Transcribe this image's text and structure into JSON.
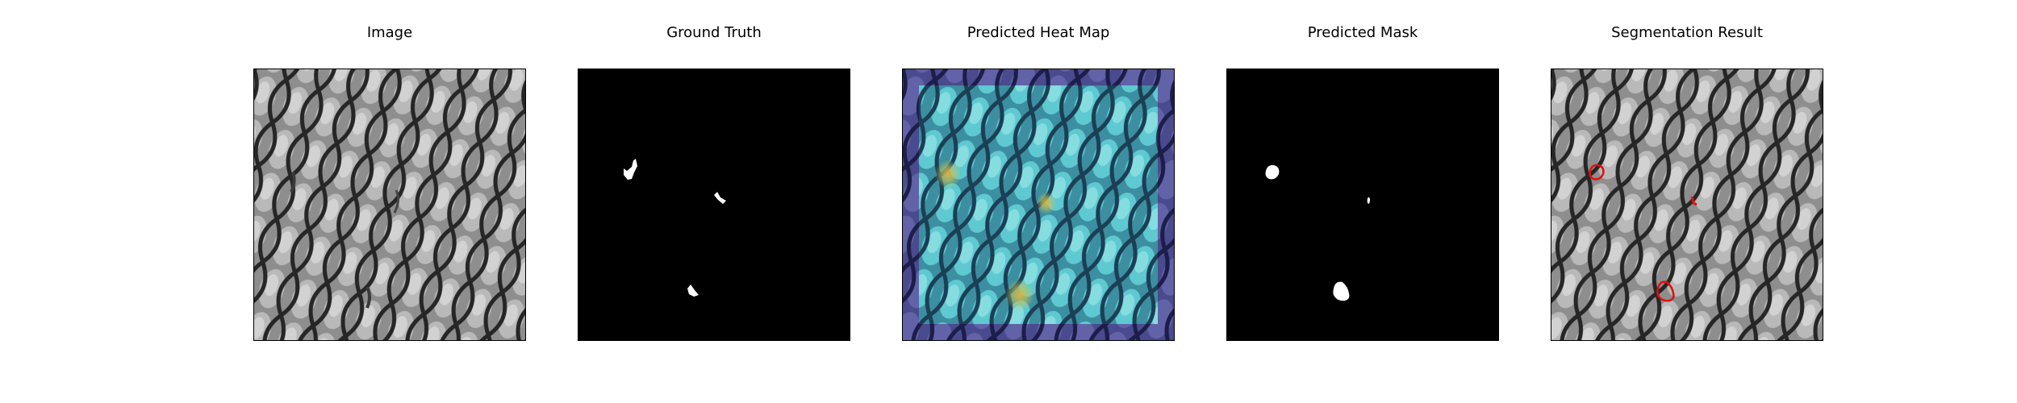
{
  "figure": {
    "panels": [
      {
        "title": "Image"
      },
      {
        "title": "Ground Truth"
      },
      {
        "title": "Predicted Heat Map"
      },
      {
        "title": "Predicted Mask"
      },
      {
        "title": "Segmentation Result"
      }
    ]
  },
  "colors": {
    "background": "#ffffff",
    "mask_foreground": "#ffffff",
    "mask_background": "#000000",
    "contour": "#e01010",
    "heat_low": "#3b3a8c",
    "heat_mid": "#3fb9c4",
    "heat_high": "#d8c44a"
  }
}
